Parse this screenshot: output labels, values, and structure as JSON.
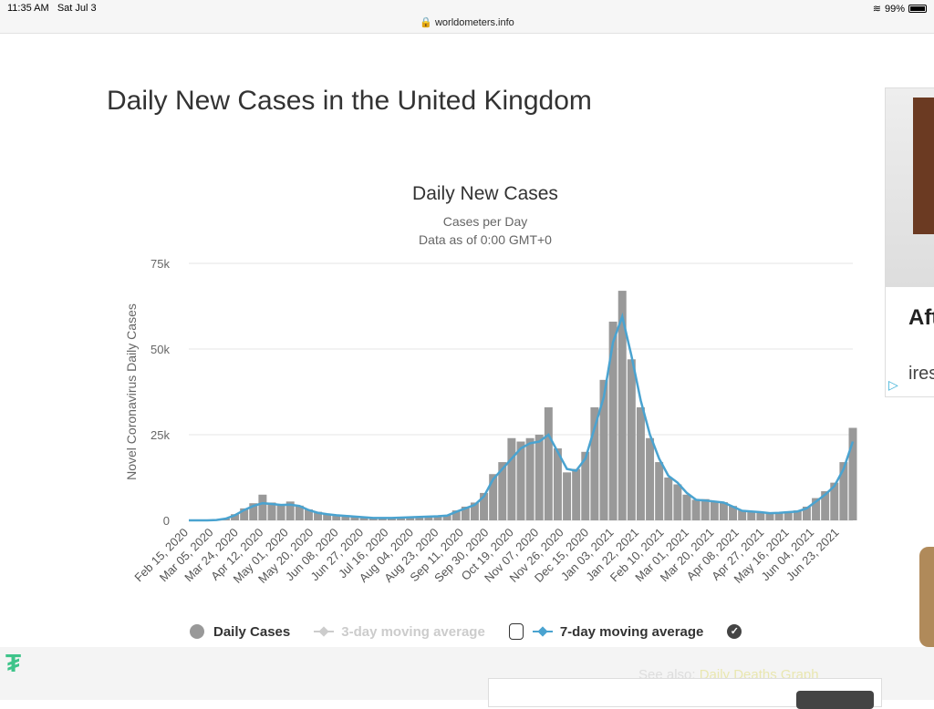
{
  "status_bar": {
    "time": "11:35 AM",
    "date": "Sat Jul 3",
    "battery": "99%",
    "url": "worldometers.info"
  },
  "page_title": "Daily New Cases in the United Kingdom",
  "ad": {
    "text1": "Aft",
    "text2": "ires"
  },
  "footer": {
    "see_also": "See also:",
    "link": "Daily Deaths Graph"
  },
  "colors": {
    "bars": "#999999",
    "line7": "#4aa3d0",
    "line3": "#cccccc"
  },
  "chart_data": {
    "type": "bar",
    "title": "Daily New Cases",
    "subtitle1": "Cases per Day",
    "subtitle2": "Data as of 0:00 GMT+0",
    "ylabel": "Novel Coronavirus Daily Cases",
    "ylim": [
      0,
      75000
    ],
    "yticks": [
      {
        "v": 0,
        "label": "0"
      },
      {
        "v": 25000,
        "label": "25k"
      },
      {
        "v": 50000,
        "label": "50k"
      },
      {
        "v": 75000,
        "label": "75k"
      }
    ],
    "xlabels": [
      "Feb 15, 2020",
      "Mar 05, 2020",
      "Mar 24, 2020",
      "Apr 12, 2020",
      "May 01, 2020",
      "May 20, 2020",
      "Jun 08, 2020",
      "Jun 27, 2020",
      "Jul 16, 2020",
      "Aug 04, 2020",
      "Aug 23, 2020",
      "Sep 11, 2020",
      "Sep 30, 2020",
      "Oct 19, 2020",
      "Nov 07, 2020",
      "Nov 26, 2020",
      "Dec 15, 2020",
      "Jan 03, 2021",
      "Jan 22, 2021",
      "Feb 10, 2021",
      "Mar 01, 2021",
      "Mar 20, 2021",
      "Apr 08, 2021",
      "Apr 27, 2021",
      "May 16, 2021",
      "Jun 04, 2021",
      "Jun 23, 2021"
    ],
    "x_step_days": 7,
    "daily_cases": [
      0,
      0,
      0,
      100,
      600,
      1800,
      3500,
      5000,
      7500,
      5200,
      4800,
      5500,
      4300,
      3200,
      2500,
      1900,
      1600,
      1400,
      1200,
      1000,
      800,
      750,
      800,
      900,
      1000,
      1100,
      1200,
      1300,
      1600,
      2900,
      4000,
      5200,
      8000,
      13500,
      17000,
      24000,
      23000,
      24000,
      25000,
      33000,
      21000,
      14000,
      15000,
      20000,
      33000,
      41000,
      58000,
      67000,
      47000,
      33000,
      24000,
      17000,
      12500,
      10500,
      7500,
      6000,
      6200,
      5500,
      5300,
      4200,
      3000,
      2700,
      2500,
      2200,
      2300,
      2600,
      2900,
      4000,
      6500,
      8500,
      11000,
      17000,
      27000
    ],
    "series": [
      {
        "name": "7-day moving average",
        "values": [
          0,
          0,
          0,
          100,
          500,
          1500,
          3000,
          4200,
          5000,
          4800,
          4500,
          4600,
          4200,
          3000,
          2200,
          1800,
          1500,
          1300,
          1100,
          900,
          700,
          700,
          700,
          800,
          900,
          1000,
          1100,
          1200,
          1400,
          2500,
          3500,
          4500,
          7000,
          12000,
          15000,
          18000,
          21000,
          22500,
          23000,
          25000,
          20000,
          15000,
          14500,
          18000,
          27000,
          36000,
          52000,
          59500,
          48000,
          35000,
          25000,
          18000,
          13000,
          11000,
          8000,
          6000,
          5800,
          5500,
          5200,
          4000,
          2800,
          2600,
          2400,
          2100,
          2200,
          2400,
          2600,
          3500,
          5500,
          7500,
          10000,
          15000,
          23000
        ]
      }
    ],
    "legend": [
      "Daily Cases",
      "3-day moving average",
      "7-day moving average"
    ],
    "legend_placement": "bottom"
  }
}
